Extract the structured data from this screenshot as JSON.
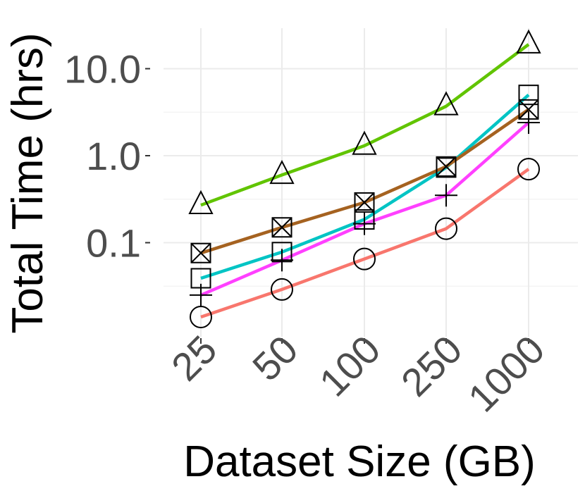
{
  "chart_data": {
    "type": "line",
    "title": "",
    "xlabel": "Dataset Size (GB)",
    "ylabel": "Total Time (hrs)",
    "y_scale": "log10",
    "ylim": [
      0.01,
      25
    ],
    "y_ticks": [
      0.1,
      1.0,
      10.0
    ],
    "y_tick_labels": [
      "0.1",
      "1.0",
      "10.0"
    ],
    "categories": [
      "25",
      "50",
      "100",
      "250",
      "1000"
    ],
    "grid": true,
    "legend": "none",
    "series": [
      {
        "color": "#61c400",
        "marker": "triangle",
        "values": [
          0.27,
          0.6,
          1.3,
          3.7,
          19.0
        ]
      },
      {
        "color": "#00c4c4",
        "marker": "square",
        "values": [
          0.039,
          0.078,
          0.185,
          0.73,
          5.0
        ]
      },
      {
        "color": "#a56220",
        "marker": "boxed-x",
        "values": [
          0.076,
          0.15,
          0.29,
          0.75,
          3.4
        ]
      },
      {
        "color": "#ff40ff",
        "marker": "plus",
        "values": [
          0.025,
          0.063,
          0.165,
          0.35,
          2.4
        ]
      },
      {
        "color": "#f8766d",
        "marker": "circle",
        "values": [
          0.014,
          0.029,
          0.065,
          0.145,
          0.7
        ]
      }
    ]
  }
}
